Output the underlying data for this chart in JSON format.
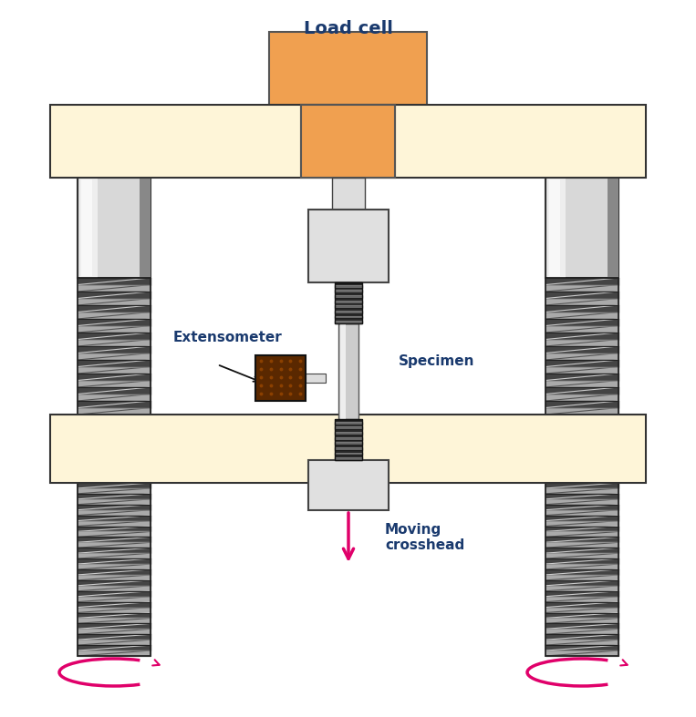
{
  "bg_color": "#ffffff",
  "beam_color": "#fef5d8",
  "beam_edge_color": "#333333",
  "load_cell_color": "#f0a050",
  "load_cell_edge_color": "#555555",
  "col_smooth_color": "#d8d8d8",
  "col_smooth_light": "#f0f0f0",
  "spring_bg": "#aaaaaa",
  "spring_dark": "#333333",
  "spring_light": "#dddddd",
  "grip_color": "#e0e0e0",
  "grip_edge_color": "#444444",
  "specimen_color": "#cccccc",
  "specimen_light": "#eeeeee",
  "thread_dark": "#1a1a1a",
  "thread_mid": "#666666",
  "extensometer_color": "#5a2800",
  "ext_dot_color": "#8b4000",
  "arrow_color": "#e0006a",
  "text_color": "#1a3a6e",
  "label_load_cell": "Load cell",
  "label_extensometer": "Extensometer",
  "label_specimen": "Specimen",
  "label_crosshead": "Moving\ncrosshead"
}
